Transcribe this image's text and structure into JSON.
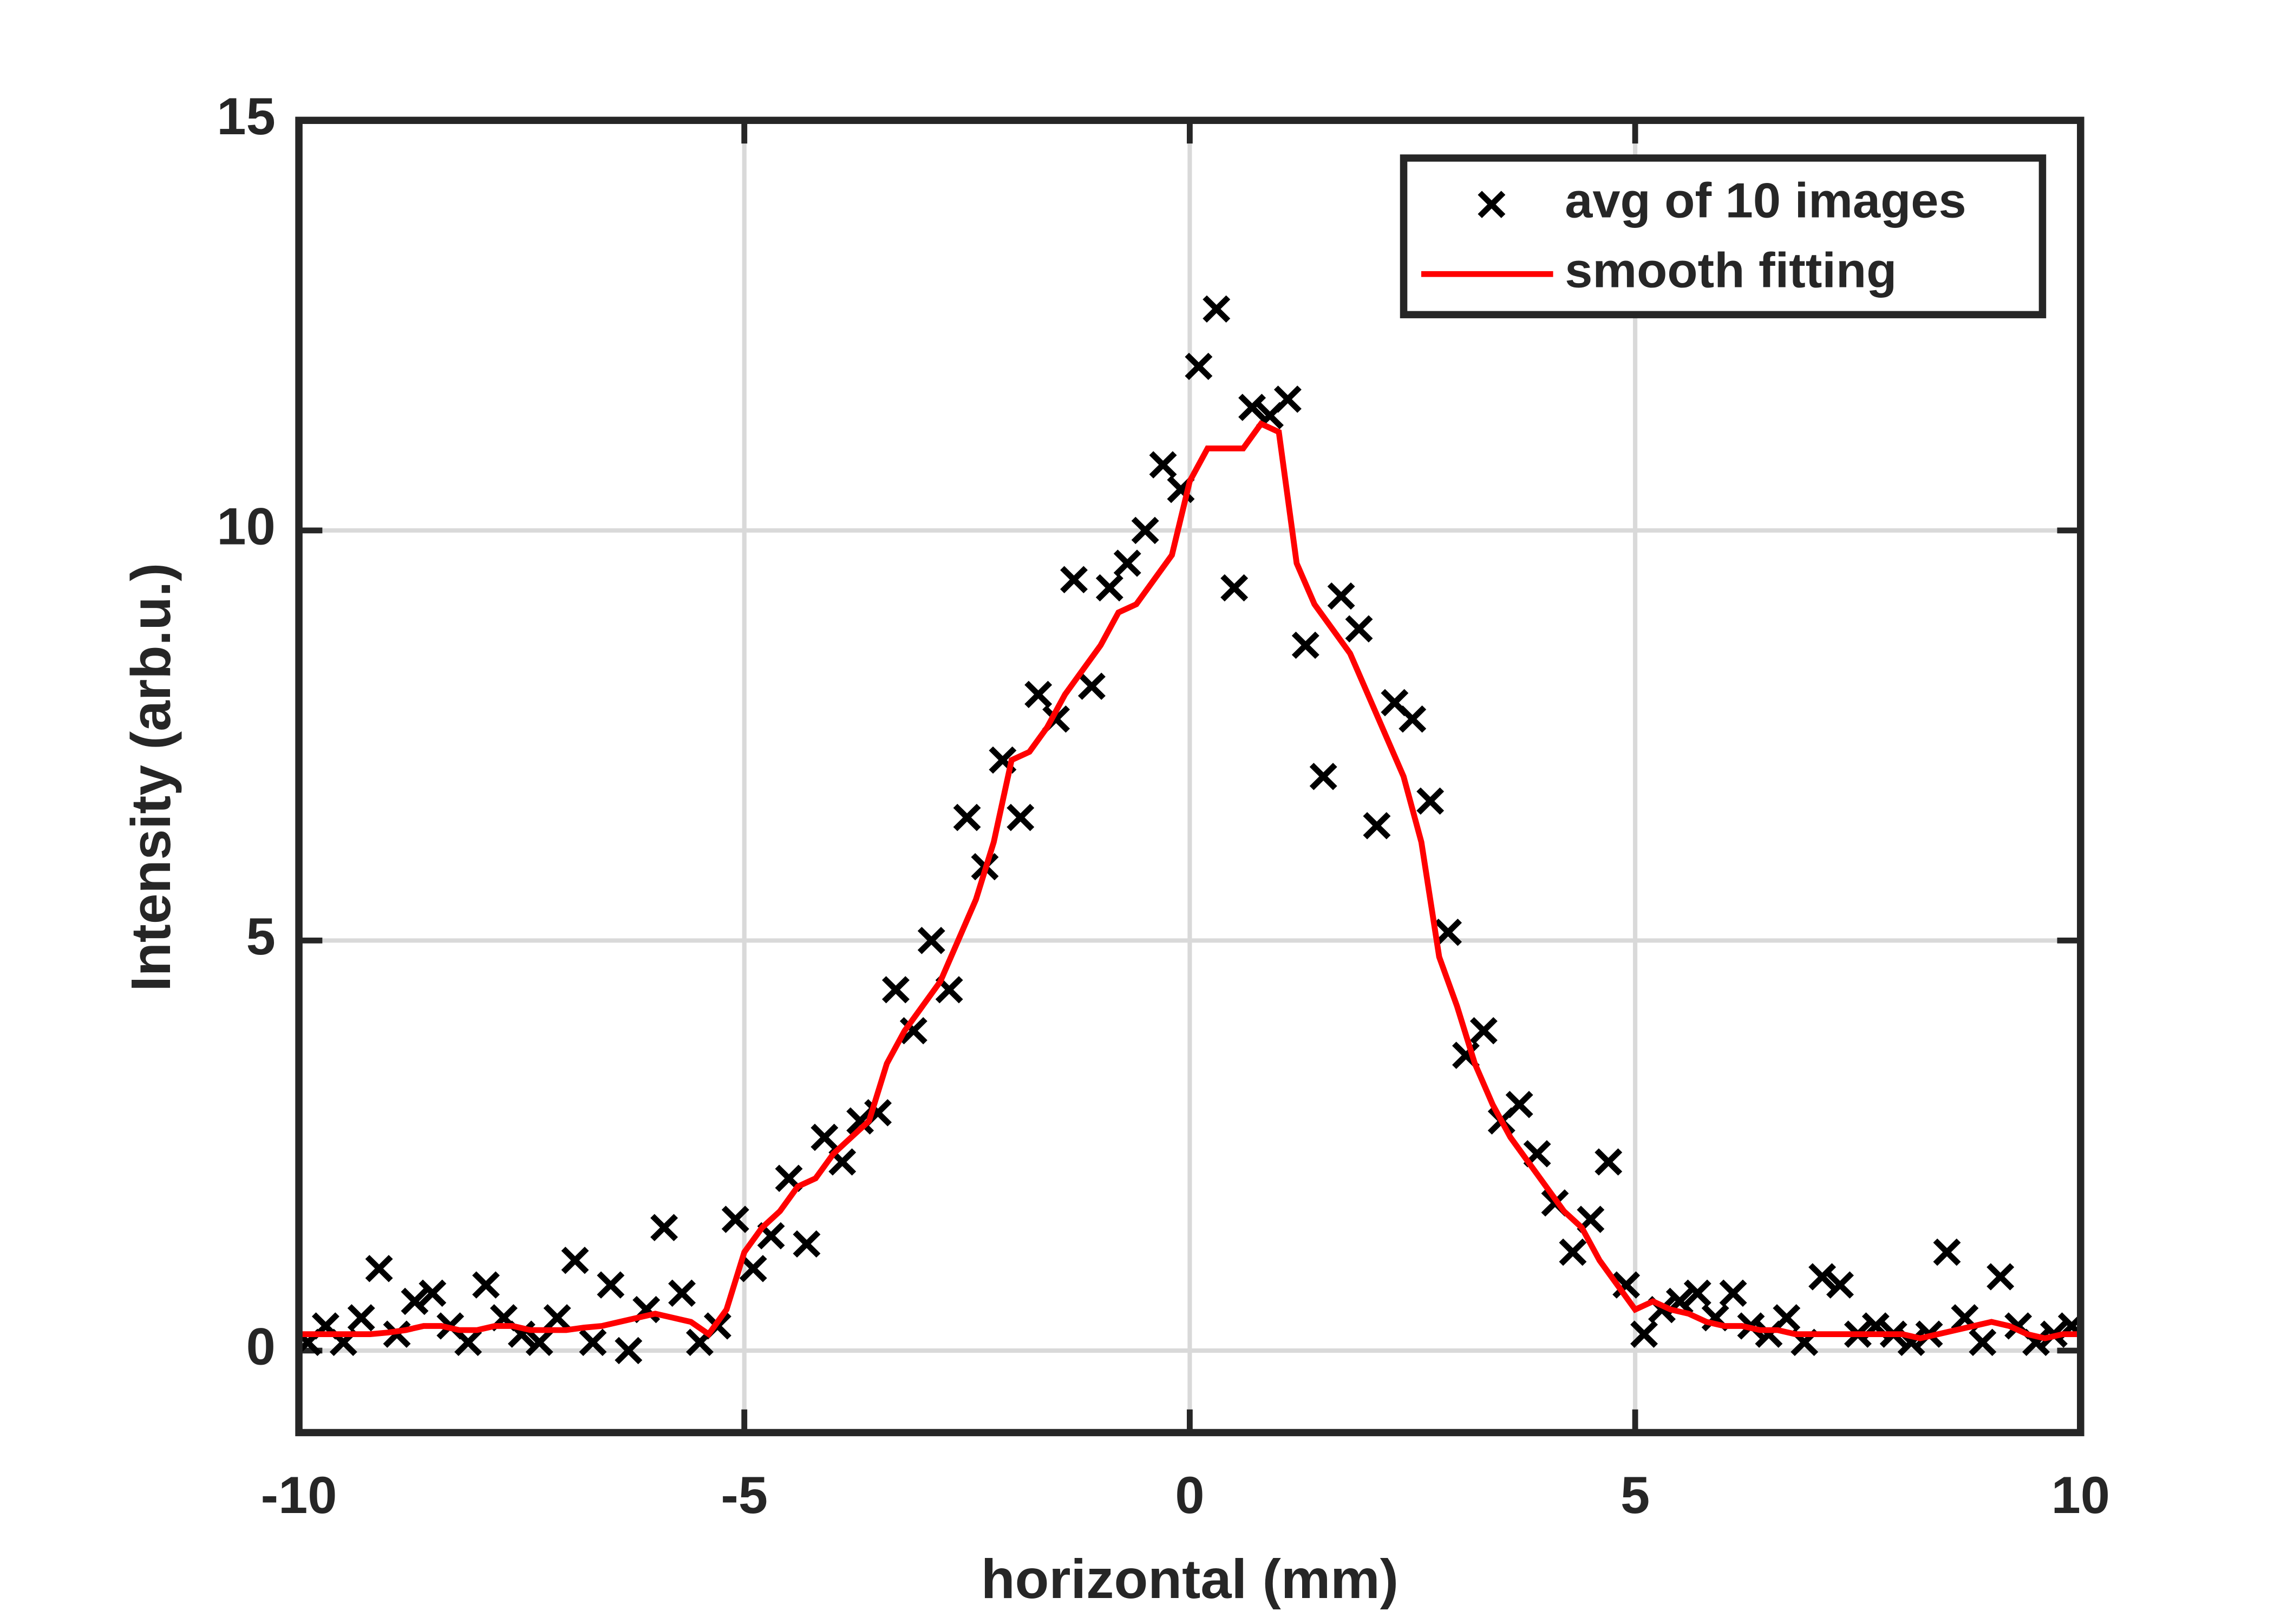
{
  "chart_data": {
    "type": "scatter",
    "xlabel": "horizontal (mm)",
    "ylabel": "Intensity (arb.u.)",
    "xlim": [
      -10,
      10
    ],
    "ylim": [
      -1,
      15
    ],
    "xticks": [
      -10,
      -5,
      0,
      5,
      10
    ],
    "yticks": [
      0,
      5,
      10,
      15
    ],
    "grid": true,
    "legend": "upper right",
    "series": [
      {
        "name": "avg of 10 images",
        "color": "#000000",
        "style": "marker",
        "x": [
          -9.9,
          -9.7,
          -9.5,
          -9.3,
          -9.1,
          -8.9,
          -8.7,
          -8.5,
          -8.3,
          -8.1,
          -7.9,
          -7.7,
          -7.5,
          -7.3,
          -7.1,
          -6.9,
          -6.7,
          -6.5,
          -6.3,
          -6.1,
          -5.9,
          -5.7,
          -5.5,
          -5.3,
          -5.1,
          -4.9,
          -4.7,
          -4.5,
          -4.3,
          -4.1,
          -3.9,
          -3.7,
          -3.5,
          -3.3,
          -3.1,
          -2.9,
          -2.7,
          -2.5,
          -2.3,
          -2.1,
          -1.9,
          -1.7,
          -1.5,
          -1.3,
          -1.1,
          -0.9,
          -0.7,
          -0.5,
          -0.3,
          -0.1,
          0.1,
          0.3,
          0.5,
          0.7,
          0.9,
          1.1,
          1.3,
          1.5,
          1.7,
          1.9,
          2.1,
          2.3,
          2.5,
          2.7,
          2.9,
          3.1,
          3.3,
          3.5,
          3.7,
          3.9,
          4.1,
          4.3,
          4.5,
          4.7,
          4.9,
          5.1,
          5.3,
          5.5,
          5.7,
          5.9,
          6.1,
          6.3,
          6.5,
          6.7,
          6.9,
          7.1,
          7.3,
          7.5,
          7.7,
          7.9,
          8.1,
          8.3,
          8.5,
          8.7,
          8.9,
          9.1,
          9.3,
          9.5,
          9.7,
          9.9
        ],
        "values": [
          0.1,
          0.3,
          0.1,
          0.4,
          1.0,
          0.2,
          0.6,
          0.7,
          0.3,
          0.1,
          0.8,
          0.4,
          0.2,
          0.1,
          0.4,
          1.1,
          0.1,
          0.8,
          0.0,
          0.5,
          1.5,
          0.7,
          0.1,
          0.3,
          1.6,
          1.0,
          1.4,
          2.1,
          1.3,
          2.6,
          2.3,
          2.8,
          2.9,
          4.4,
          3.9,
          5.0,
          4.4,
          6.5,
          5.9,
          7.2,
          6.5,
          8.0,
          7.7,
          9.4,
          8.1,
          9.3,
          9.6,
          10.0,
          10.8,
          10.5,
          12.0,
          12.7,
          9.3,
          11.5,
          11.4,
          11.6,
          8.6,
          7.0,
          9.2,
          8.8,
          6.4,
          7.9,
          7.7,
          6.7,
          5.1,
          3.6,
          3.9,
          2.8,
          3.0,
          2.4,
          1.8,
          1.2,
          1.6,
          2.3,
          0.8,
          0.2,
          0.5,
          0.6,
          0.7,
          0.4,
          0.7,
          0.3,
          0.2,
          0.4,
          0.1,
          0.9,
          0.8,
          0.2,
          0.3,
          0.2,
          0.1,
          0.2,
          1.2,
          0.4,
          0.1,
          0.9,
          0.3,
          0.1,
          0.2,
          0.3
        ]
      },
      {
        "name": "smooth fitting",
        "color": "#ff0000",
        "style": "line",
        "x": [
          -10,
          -9.8,
          -9.6,
          -9.4,
          -9.2,
          -9,
          -8.8,
          -8.6,
          -8.4,
          -8.2,
          -8,
          -7.8,
          -7.6,
          -7.4,
          -7.2,
          -7,
          -6.8,
          -6.6,
          -6.4,
          -6.2,
          -6,
          -5.8,
          -5.6,
          -5.4,
          -5.2,
          -5,
          -4.8,
          -4.6,
          -4.4,
          -4.2,
          -4,
          -3.8,
          -3.6,
          -3.4,
          -3.2,
          -3,
          -2.8,
          -2.6,
          -2.4,
          -2.2,
          -2,
          -1.8,
          -1.6,
          -1.4,
          -1.2,
          -1,
          -0.8,
          -0.6,
          -0.4,
          -0.2,
          0,
          0.2,
          0.4,
          0.6,
          0.8,
          1,
          1.2,
          1.4,
          1.6,
          1.8,
          2,
          2.2,
          2.4,
          2.6,
          2.8,
          3,
          3.2,
          3.4,
          3.6,
          3.8,
          4,
          4.2,
          4.4,
          4.6,
          4.8,
          5,
          5.2,
          5.4,
          5.6,
          5.8,
          6,
          6.2,
          6.4,
          6.6,
          6.8,
          7,
          7.2,
          7.4,
          7.6,
          7.8,
          8,
          8.2,
          8.4,
          8.6,
          8.8,
          9,
          9.2,
          9.4,
          9.6,
          9.8,
          10
        ],
        "values": [
          0.2,
          0.2,
          0.2,
          0.2,
          0.2,
          0.22,
          0.25,
          0.3,
          0.3,
          0.25,
          0.25,
          0.3,
          0.3,
          0.25,
          0.25,
          0.25,
          0.28,
          0.3,
          0.35,
          0.4,
          0.45,
          0.4,
          0.35,
          0.2,
          0.5,
          1.2,
          1.5,
          1.7,
          2.0,
          2.1,
          2.4,
          2.6,
          2.8,
          3.5,
          3.9,
          4.2,
          4.5,
          5.0,
          5.5,
          6.2,
          7.2,
          7.3,
          7.6,
          8.0,
          8.3,
          8.6,
          9.0,
          9.1,
          9.4,
          9.7,
          10.6,
          11.0,
          11.0,
          11.0,
          11.3,
          11.2,
          9.6,
          9.1,
          8.8,
          8.5,
          8.0,
          7.5,
          7.0,
          6.2,
          4.8,
          4.2,
          3.5,
          3.0,
          2.6,
          2.3,
          2.0,
          1.7,
          1.5,
          1.1,
          0.8,
          0.5,
          0.6,
          0.5,
          0.45,
          0.35,
          0.3,
          0.3,
          0.25,
          0.25,
          0.2,
          0.2,
          0.2,
          0.2,
          0.2,
          0.2,
          0.2,
          0.15,
          0.2,
          0.25,
          0.3,
          0.35,
          0.3,
          0.2,
          0.15,
          0.2,
          0.2
        ]
      }
    ]
  }
}
